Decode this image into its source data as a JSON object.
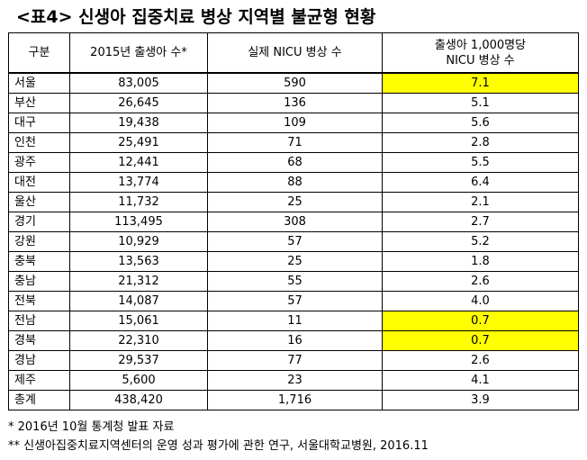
{
  "title": "<표4> 신생아 집중치료 병상 지역별 불균형 현황",
  "table": {
    "headers": [
      "구분",
      "2015년 출생아 수*",
      "실제 NICU 병상 수",
      [
        "출생아 1,000명당",
        "NICU 병상 수"
      ]
    ],
    "rows": [
      {
        "region": "서울",
        "births": "83,005",
        "beds": "590",
        "per1000": "7.1",
        "highlight": true
      },
      {
        "region": "부산",
        "births": "26,645",
        "beds": "136",
        "per1000": "5.1",
        "highlight": false
      },
      {
        "region": "대구",
        "births": "19,438",
        "beds": "109",
        "per1000": "5.6",
        "highlight": false
      },
      {
        "region": "인천",
        "births": "25,491",
        "beds": "71",
        "per1000": "2.8",
        "highlight": false
      },
      {
        "region": "광주",
        "births": "12,441",
        "beds": "68",
        "per1000": "5.5",
        "highlight": false
      },
      {
        "region": "대전",
        "births": "13,774",
        "beds": "88",
        "per1000": "6.4",
        "highlight": false
      },
      {
        "region": "울산",
        "births": "11,732",
        "beds": "25",
        "per1000": "2.1",
        "highlight": false
      },
      {
        "region": "경기",
        "births": "113,495",
        "beds": "308",
        "per1000": "2.7",
        "highlight": false
      },
      {
        "region": "강원",
        "births": "10,929",
        "beds": "57",
        "per1000": "5.2",
        "highlight": false
      },
      {
        "region": "충북",
        "births": "13,563",
        "beds": "25",
        "per1000": "1.8",
        "highlight": false
      },
      {
        "region": "충남",
        "births": "21,312",
        "beds": "55",
        "per1000": "2.6",
        "highlight": false
      },
      {
        "region": "전북",
        "births": "14,087",
        "beds": "57",
        "per1000": "4.0",
        "highlight": false
      },
      {
        "region": "전남",
        "births": "15,061",
        "beds": "11",
        "per1000": "0.7",
        "highlight": true
      },
      {
        "region": "경북",
        "births": "22,310",
        "beds": "16",
        "per1000": "0.7",
        "highlight": true
      },
      {
        "region": "경남",
        "births": "29,537",
        "beds": "77",
        "per1000": "2.6",
        "highlight": false
      },
      {
        "region": "제주",
        "births": "5,600",
        "beds": "23",
        "per1000": "4.1",
        "highlight": false
      },
      {
        "region": "총계",
        "births": "438,420",
        "beds": "1,716",
        "per1000": "3.9",
        "highlight": false
      }
    ]
  },
  "notes": [
    "* 2016년 10월 통계청 발표 자료",
    "** 신생아집중치료지역센터의 운영 성과 평가에 관한 연구, 서울대학교병원, 2016.11"
  ],
  "colors": {
    "highlight": "#ffff00",
    "border": "#000000"
  }
}
